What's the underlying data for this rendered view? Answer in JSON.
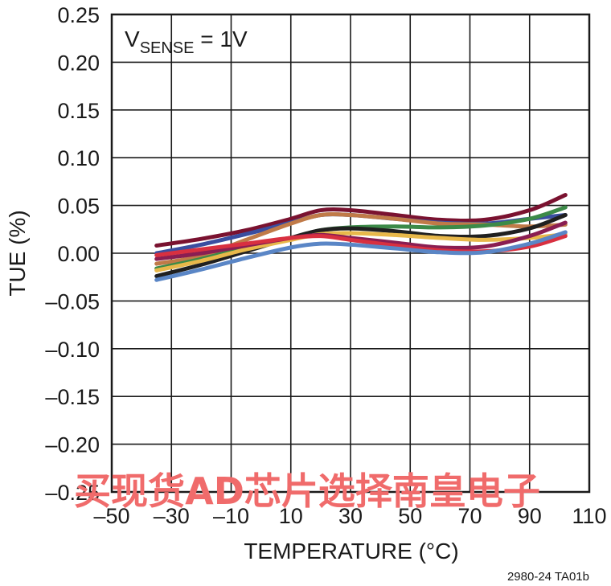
{
  "chart_data": {
    "type": "line",
    "title": "",
    "xlabel": "TEMPERATURE (°C)",
    "ylabel": "TUE (%)",
    "xlim": [
      -50,
      110
    ],
    "ylim": [
      -0.25,
      0.25
    ],
    "x_ticks": [
      -50,
      -30,
      -10,
      10,
      30,
      50,
      70,
      90,
      110
    ],
    "x_tick_labels": [
      "–50",
      "–30",
      "–10",
      "10",
      "30",
      "50",
      "70",
      "90",
      "110"
    ],
    "y_ticks": [
      0.25,
      0.2,
      0.15,
      0.1,
      0.05,
      0.0,
      -0.05,
      -0.1,
      -0.15,
      -0.2,
      -0.25
    ],
    "y_tick_labels": [
      "0.25",
      "0.20",
      "0.15",
      "0.10",
      "0.05",
      "0.00",
      "–0.05",
      "–0.10",
      "–0.15",
      "–0.20",
      "–0.25"
    ],
    "grid": true,
    "legend": "none",
    "annotation": {
      "main": "V",
      "sub": "SENSE",
      "rest": " = 1V"
    },
    "figure_id": "2980-24 TA01b",
    "x": [
      -35,
      -20,
      -5,
      10,
      20,
      30,
      45,
      60,
      75,
      90,
      102
    ],
    "series": [
      {
        "color": "#7a1230",
        "values": [
          0.008,
          0.015,
          0.024,
          0.036,
          0.045,
          0.045,
          0.04,
          0.035,
          0.035,
          0.045,
          0.061
        ]
      },
      {
        "color": "#3a4ea0",
        "values": [
          0.0,
          0.009,
          0.02,
          0.032,
          0.04,
          0.04,
          0.036,
          0.032,
          0.031,
          0.036,
          0.04
        ]
      },
      {
        "color": "#c07a48",
        "values": [
          -0.011,
          -0.003,
          0.014,
          0.031,
          0.04,
          0.04,
          0.036,
          0.031,
          0.03,
          0.028,
          0.03
        ]
      },
      {
        "color": "#3c8a48",
        "values": [
          -0.016,
          -0.006,
          0.006,
          0.016,
          0.024,
          0.027,
          0.028,
          0.027,
          0.029,
          0.036,
          0.048
        ]
      },
      {
        "color": "#202020",
        "values": [
          -0.024,
          -0.012,
          0.002,
          0.016,
          0.024,
          0.026,
          0.023,
          0.018,
          0.018,
          0.026,
          0.04
        ]
      },
      {
        "color": "#e8b84a",
        "values": [
          -0.018,
          -0.008,
          0.004,
          0.014,
          0.02,
          0.021,
          0.019,
          0.016,
          0.014,
          0.016,
          0.02
        ]
      },
      {
        "color": "#8a1e52",
        "values": [
          -0.006,
          0.0,
          0.008,
          0.016,
          0.019,
          0.016,
          0.011,
          0.006,
          0.007,
          0.018,
          0.032
        ]
      },
      {
        "color": "#d83040",
        "values": [
          -0.002,
          0.004,
          0.01,
          0.016,
          0.018,
          0.014,
          0.008,
          0.003,
          0.002,
          0.007,
          0.018
        ]
      },
      {
        "color": "#5a86c6",
        "values": [
          -0.028,
          -0.017,
          -0.005,
          0.006,
          0.01,
          0.009,
          0.005,
          0.001,
          0.001,
          0.01,
          0.022
        ]
      }
    ]
  },
  "watermark": "买现货AD芯片选择南皇电子"
}
